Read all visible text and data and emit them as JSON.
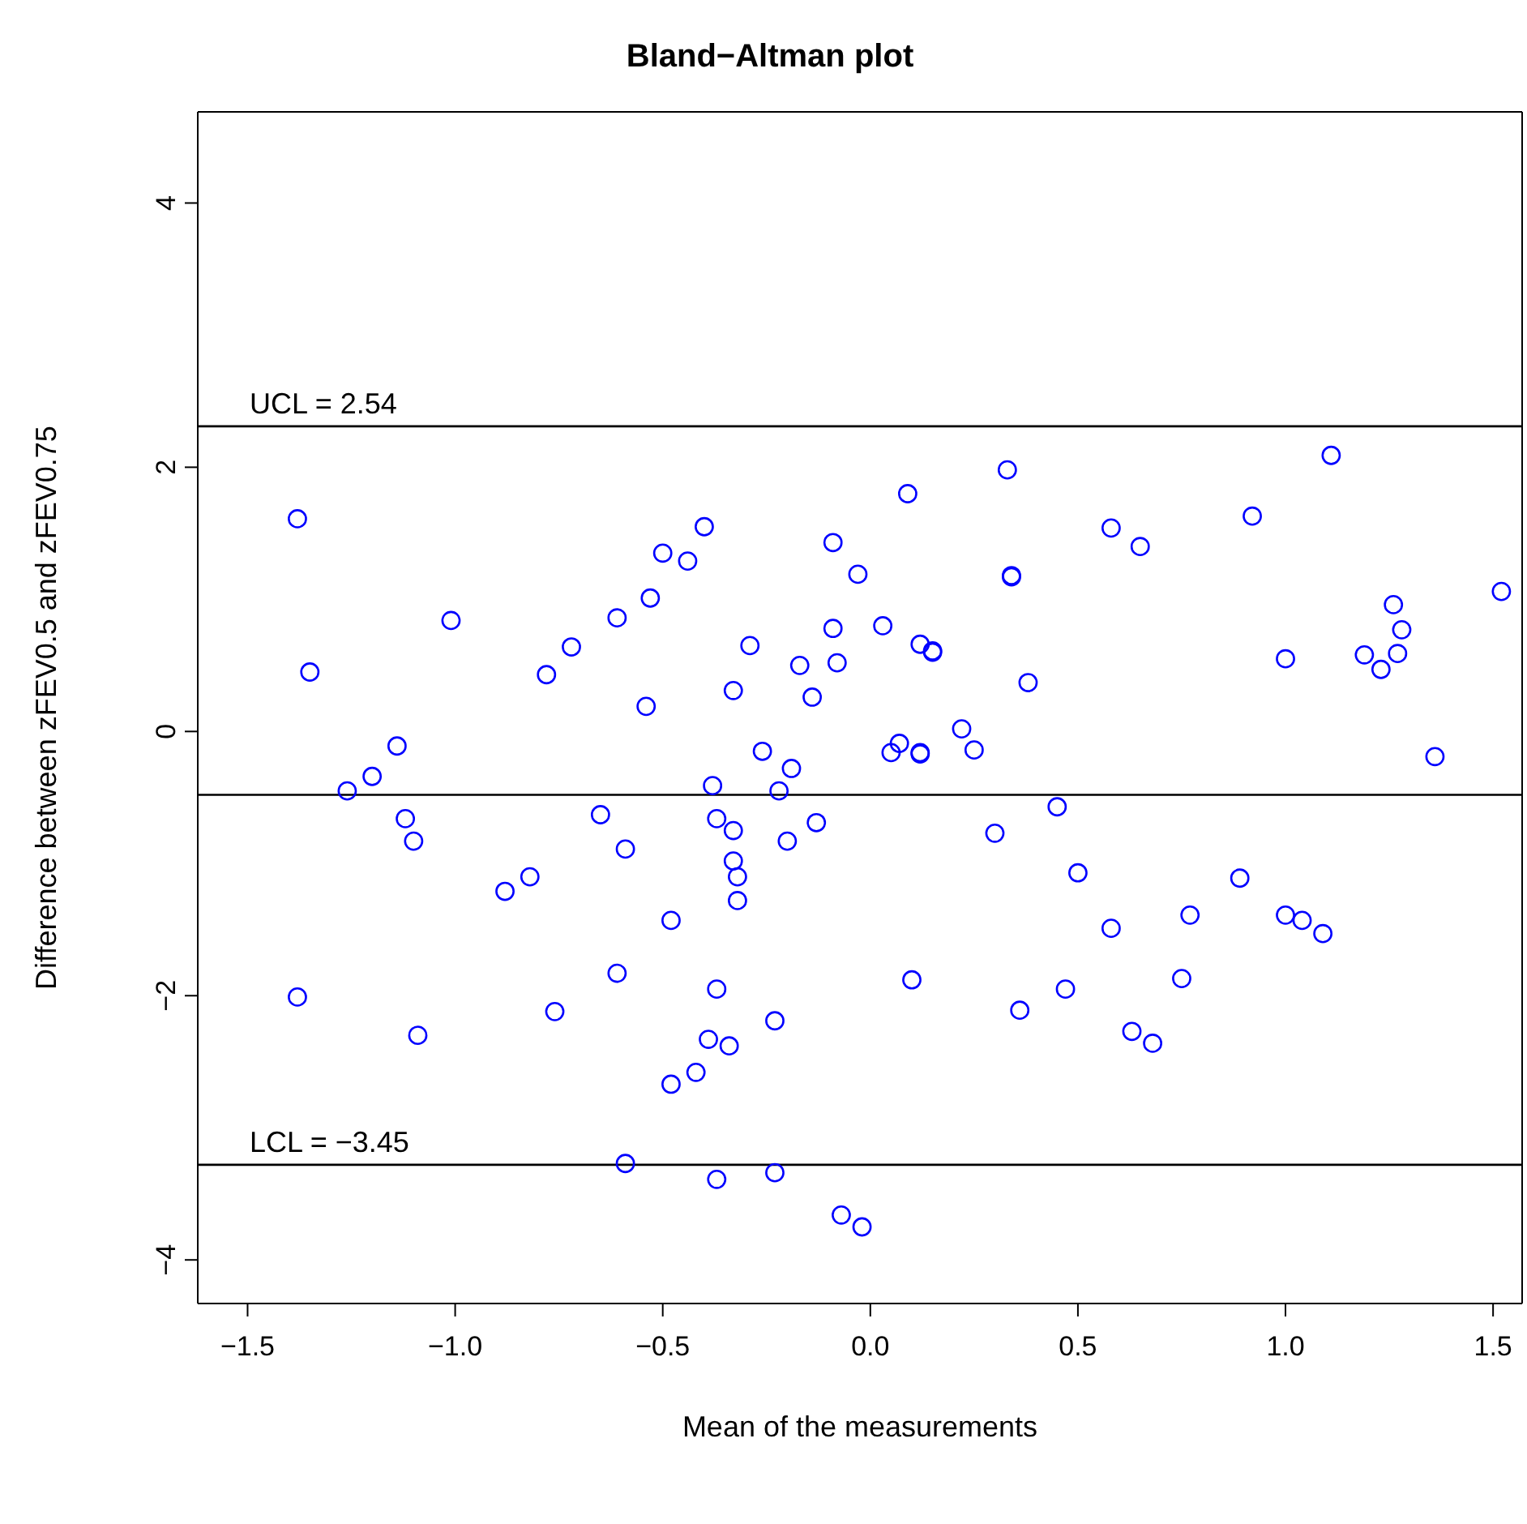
{
  "chart_data": {
    "type": "scatter",
    "title": "Bland−Altman plot",
    "xlabel": "Mean of the measurements",
    "ylabel": "Difference between zFEV0.5 and zFEV0.75",
    "xlim": [
      -1.62,
      1.57
    ],
    "ylim": [
      -4.33,
      4.69
    ],
    "xticks": [
      {
        "value": -1.5,
        "label": "−1.5"
      },
      {
        "value": -1,
        "label": "−1.0"
      },
      {
        "value": -0.5,
        "label": "−0.5"
      },
      {
        "value": 0,
        "label": "0.0"
      },
      0.5,
      {
        "value": 1,
        "label": "1.0"
      },
      1.5
    ],
    "yticks": [
      {
        "value": -4,
        "label": "−4"
      },
      {
        "value": -2,
        "label": "−2"
      },
      0,
      2,
      4
    ],
    "grid": false,
    "legend": false,
    "marker": "circle",
    "annotations": [
      "UCL = 2.54",
      "LCL = −3.45"
    ],
    "ref_lines": [
      {
        "axis": "y",
        "value": 2.31,
        "label": null,
        "color": "#000000"
      },
      {
        "axis": "y",
        "value": -0.48,
        "label": null,
        "color": "#000000"
      },
      {
        "axis": "y",
        "value": -3.28,
        "label": null,
        "color": "#000000"
      }
    ],
    "series": [
      {
        "color": "#0000ff",
        "x": [
          -1.38,
          -1.35,
          -1.01,
          -1.14,
          -1.26,
          -1.2,
          -1.12,
          -1.1,
          -1.38,
          -1.09,
          -0.88,
          -0.82,
          -0.78,
          -0.72,
          -0.76,
          -0.61,
          -0.53,
          -0.5,
          -0.44,
          -0.4,
          -0.54,
          -0.33,
          -0.29,
          -0.65,
          -0.59,
          -0.61,
          -0.48,
          -0.38,
          -0.37,
          -0.33,
          -0.33,
          -0.32,
          -0.32,
          -0.37,
          -0.39,
          -0.34,
          -0.42,
          -0.48,
          -0.59,
          -0.37,
          -0.23,
          -0.07,
          -0.02,
          -0.26,
          -0.19,
          -0.22,
          -0.2,
          -0.13,
          -0.23,
          -0.17,
          -0.14,
          -0.09,
          -0.08,
          -0.09,
          -0.03,
          0.03,
          0.09,
          0.05,
          0.07,
          0.12,
          0.12,
          0.12,
          0.15,
          0.15,
          0.1,
          0.22,
          0.25,
          0.33,
          0.34,
          0.34,
          0.38,
          0.3,
          0.45,
          0.5,
          0.36,
          0.47,
          0.58,
          0.65,
          0.58,
          0.77,
          0.75,
          0.63,
          0.68,
          0.89,
          0.92,
          1.0,
          1.0,
          1.04,
          1.09,
          1.11,
          1.19,
          1.23,
          1.26,
          1.28,
          1.27,
          1.36,
          1.52
        ],
        "values": [
          1.61,
          0.45,
          0.84,
          -0.11,
          -0.45,
          -0.34,
          -0.66,
          -0.83,
          -2.01,
          -2.3,
          -1.21,
          -1.1,
          0.43,
          0.64,
          -2.12,
          0.86,
          1.01,
          1.35,
          1.29,
          1.55,
          0.19,
          0.31,
          0.65,
          -0.63,
          -0.89,
          -1.83,
          -1.43,
          -0.41,
          -0.66,
          -0.75,
          -0.98,
          -1.1,
          -1.28,
          -1.95,
          -2.33,
          -2.38,
          -2.58,
          -2.67,
          -3.27,
          -3.39,
          -3.34,
          -3.66,
          -3.75,
          -0.15,
          -0.28,
          -0.45,
          -0.83,
          -0.69,
          -2.19,
          0.5,
          0.26,
          0.78,
          0.52,
          1.43,
          1.19,
          0.8,
          1.8,
          -0.16,
          -0.09,
          -0.16,
          -0.17,
          0.66,
          0.61,
          0.6,
          -1.88,
          0.02,
          -0.14,
          1.98,
          1.18,
          1.17,
          0.37,
          -0.77,
          -0.57,
          -1.07,
          -2.11,
          -1.95,
          1.54,
          1.4,
          -1.49,
          -1.39,
          -1.87,
          -2.27,
          -2.36,
          -1.11,
          1.63,
          0.55,
          -1.39,
          -1.43,
          -1.53,
          2.09,
          0.58,
          0.47,
          0.96,
          0.77,
          0.59,
          -0.19,
          1.06
        ]
      }
    ]
  }
}
